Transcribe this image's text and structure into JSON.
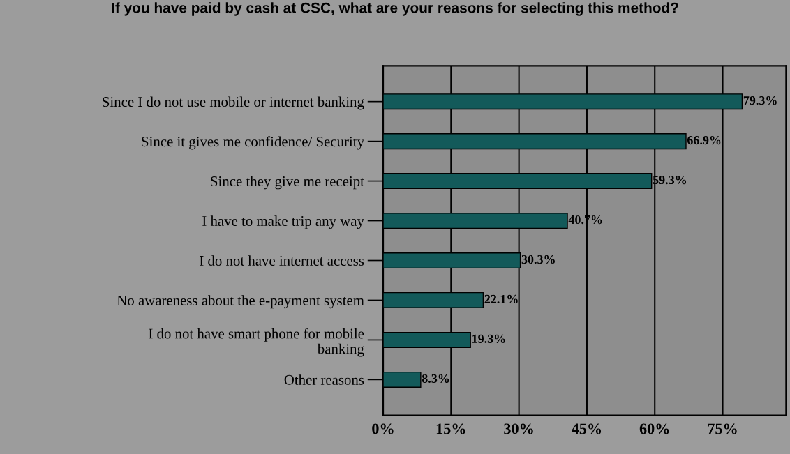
{
  "chart_data": {
    "type": "bar",
    "orientation": "horizontal",
    "title": "If you have paid by cash at CSC, what are your reasons for selecting this method?",
    "categories": [
      "Since I do not use mobile or internet banking",
      "Since it gives me confidence/ Security",
      "Since they give me receipt",
      "I have to make trip any way",
      "I do not have internet access",
      "No awareness about the e-payment system",
      "I do not have smart phone for mobile\nbanking",
      "Other reasons"
    ],
    "values": [
      79.3,
      66.9,
      59.3,
      40.7,
      30.3,
      22.1,
      19.3,
      8.3
    ],
    "color": "#135a5a",
    "value_labels": [
      "79.3%",
      "66.9%",
      "59.3%",
      "40.7%",
      "30.3%",
      "22.1%",
      "19.3%",
      "8.3%"
    ],
    "xlim": [
      0,
      89
    ],
    "xticks": [
      {
        "value": 0,
        "label": "0%"
      },
      {
        "value": 15,
        "label": "15%"
      },
      {
        "value": 30,
        "label": "30%"
      },
      {
        "value": 45,
        "label": "45%"
      },
      {
        "value": 60,
        "label": "60%"
      },
      {
        "value": 75,
        "label": "75%"
      }
    ],
    "grid": "x"
  }
}
